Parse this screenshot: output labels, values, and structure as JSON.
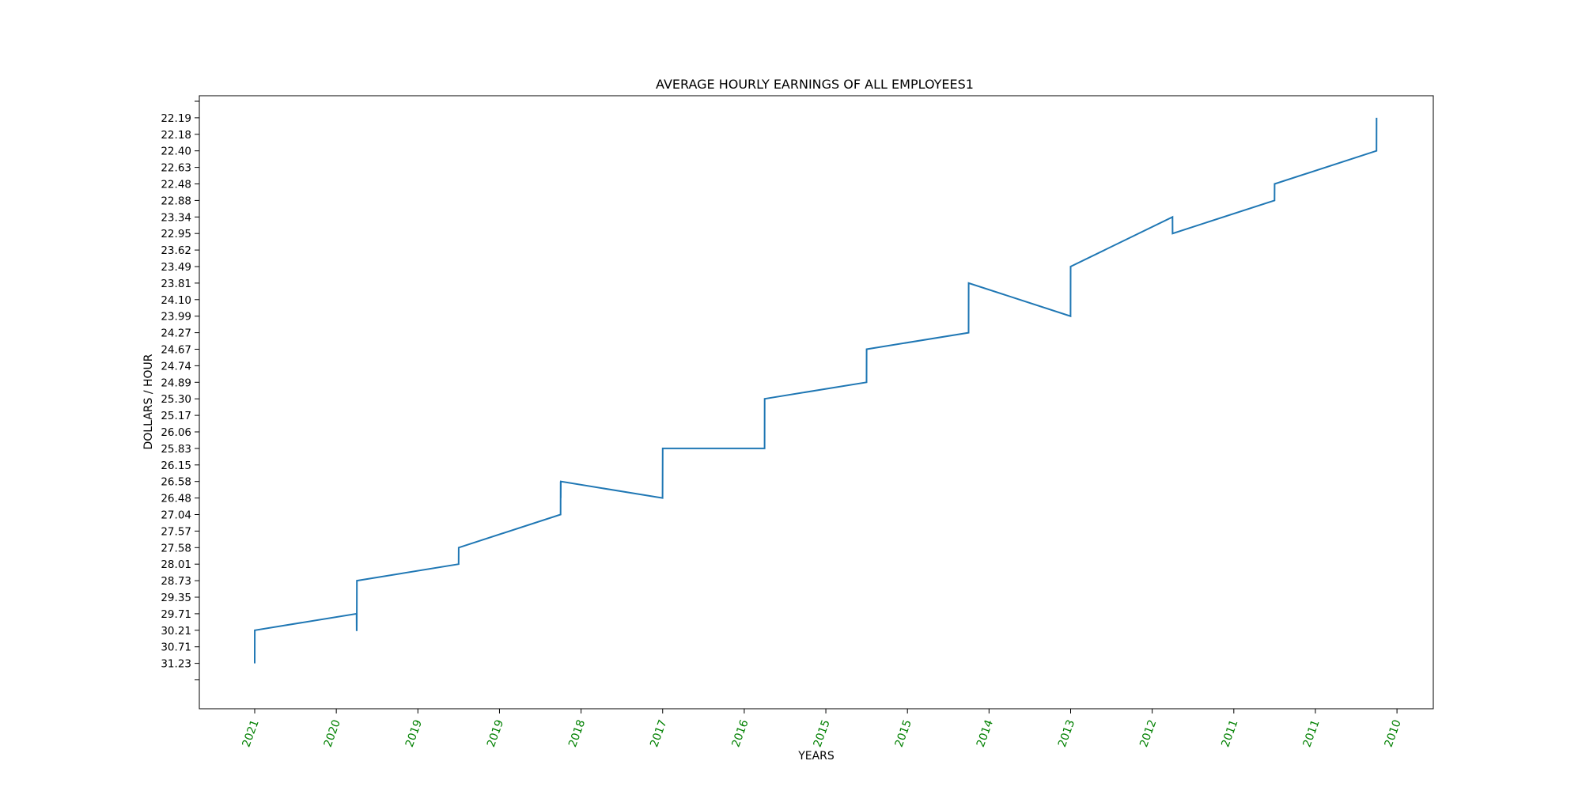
{
  "chart_data": {
    "type": "line",
    "title": "AVERAGE HOURLY EARNINGS OF ALL EMPLOYEES1",
    "xlabel": "YEARS",
    "ylabel": "DOLLARS / HOUR",
    "grid": false,
    "x_tick_color": "#008000",
    "line_color": "#1f77b4",
    "x_tick_labels": [
      "2021",
      "2020",
      "2019",
      "2019",
      "2018",
      "2017",
      "2016",
      "2015",
      "2015",
      "2014",
      "2013",
      "2012",
      "2011",
      "2011",
      "2010"
    ],
    "y_tick_labels": [
      "",
      "31.23",
      "30.71",
      "30.21",
      "29.71",
      "29.35",
      "28.73",
      "28.01",
      "27.58",
      "27.57",
      "27.04",
      "26.48",
      "26.58",
      "26.15",
      "25.83",
      "26.06",
      "25.17",
      "25.30",
      "24.89",
      "24.74",
      "24.67",
      "24.27",
      "23.99",
      "24.10",
      "23.81",
      "23.49",
      "23.62",
      "22.95",
      "23.34",
      "22.88",
      "22.48",
      "22.63",
      "22.40",
      "22.18",
      "22.19",
      ""
    ],
    "series": [
      {
        "x": [
          0.0,
          0.001,
          1.249,
          1.25,
          1.251,
          1.252,
          1.253,
          2.499,
          2.5,
          3.749,
          3.75,
          3.751,
          3.752,
          4.999,
          5.0,
          6.249,
          6.25,
          7.499,
          7.5,
          8.749,
          8.75,
          9.999,
          10.0,
          11.249,
          11.25,
          12.499,
          12.5,
          13.749,
          13.75
        ],
        "y": [
          31.23,
          30.21,
          29.71,
          30.21,
          30.0,
          29.71,
          28.73,
          28.01,
          27.58,
          27.04,
          26.58,
          26.48,
          26.75,
          26.48,
          25.83,
          25.83,
          25.3,
          24.89,
          24.67,
          24.27,
          23.81,
          23.99,
          23.49,
          23.34,
          22.95,
          22.88,
          22.48,
          22.4,
          22.19
        ]
      }
    ]
  }
}
